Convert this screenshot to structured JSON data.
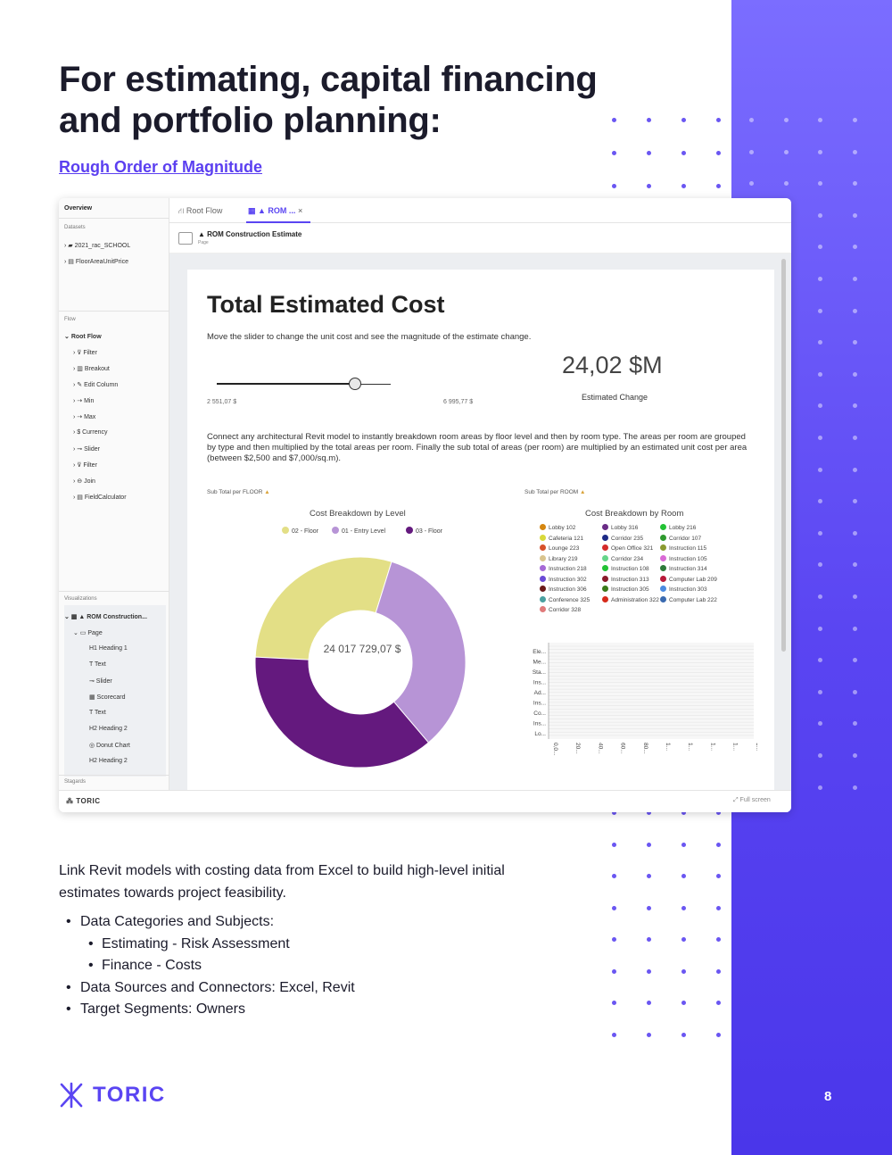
{
  "page": {
    "headline_line1": "For estimating, capital financing",
    "headline_line2": "and portfolio planning:",
    "subheading": "Rough Order of Magnitude",
    "body": "Link Revit models with costing data from Excel to build high-level initial estimates towards project feasibility.",
    "bullets": [
      "Data Categories and Subjects:",
      "Estimating - Risk Assessment",
      "Finance - Costs",
      "Data Sources and Connectors: Excel, Revit",
      "Target Segments: Owners"
    ],
    "brand": "TORIC",
    "page_number": "8",
    "colors": {
      "accent": "#5a45f2",
      "band_top": "#7b6dff",
      "band_bottom": "#4a36ea"
    }
  },
  "app": {
    "sidebar": {
      "overview": "Overview",
      "datasets_label": "Datasets",
      "datasets": [
        "2021_rac_SCHOOL",
        "FloorAreaUnitPrice"
      ],
      "flow_label": "Flow",
      "root_flow": "Root Flow",
      "flow_items": [
        "Filter",
        "Breakout",
        "Edit Column",
        "Min",
        "Max",
        "Currency",
        "Slider",
        "Filter",
        "Join",
        "FieldCalculator"
      ],
      "visualizations_label": "Visualizations",
      "vis_root": "ROM Construction...",
      "vis_page": "Page",
      "vis_items": [
        "Heading 1",
        "Text",
        "Slider",
        "Scorecard",
        "Text",
        "Heading 2",
        "Donut Chart",
        "Heading 2"
      ],
      "stagards": "Stagards"
    },
    "tabs": {
      "root_flow": "Root Flow",
      "rom": "ROM ...",
      "close": "×"
    },
    "pagebar": {
      "title": "ROM Construction Estimate",
      "subtitle": "Page"
    },
    "report": {
      "title": "Total Estimated Cost",
      "description": "Move the slider to change the unit cost and see the magnitude of the estimate change.",
      "slider_min": "2 551,07 $",
      "slider_max": "6 995,77 $",
      "big_number": "24,02 $M",
      "big_number_label": "Estimated Change",
      "body": "Connect any architectural Revit model to instantly breakdown room areas by floor level and then by room type. The areas per room are grouped by type and then multiplied by the total areas per room. Finally the sub total of areas (per room) are multiplied by an estimated unit cost per area (between $2,500 and $7,000/sq.m).",
      "subtotal_floor": "Sub Total per FLOOR",
      "subtotal_room": "Sub Total per ROOM"
    },
    "footer": {
      "logo": "TORIC",
      "fullscreen": "Full screen"
    }
  },
  "chart_data": [
    {
      "type": "pie",
      "title": "Cost Breakdown by Level",
      "center_label": "24 017 729,07 $",
      "legend_position": "top",
      "series": [
        {
          "name": "02 - Floor",
          "value": 29,
          "color": "#e3df86"
        },
        {
          "name": "01 - Entry Level",
          "value": 34,
          "color": "#b794d6"
        },
        {
          "name": "03 - Floor",
          "value": 37,
          "color": "#64197e"
        }
      ]
    },
    {
      "type": "bar",
      "title": "Cost Breakdown by Room",
      "legend_position": "top",
      "legend": [
        {
          "name": "Lobby 102",
          "color": "#d5860f"
        },
        {
          "name": "Lobby 316",
          "color": "#6a2c86"
        },
        {
          "name": "Lobby 216",
          "color": "#22c234"
        },
        {
          "name": "Cafeteria 121",
          "color": "#d8d93a"
        },
        {
          "name": "Corridor 235",
          "color": "#1d2a86"
        },
        {
          "name": "Corridor 107",
          "color": "#2e9a2e"
        },
        {
          "name": "Lounge 223",
          "color": "#d7512a"
        },
        {
          "name": "Open Office 321",
          "color": "#d42a2a"
        },
        {
          "name": "Instruction 115",
          "color": "#8b9a30"
        },
        {
          "name": "Library 219",
          "color": "#d9c48e"
        },
        {
          "name": "Corridor 234",
          "color": "#66d58a"
        },
        {
          "name": "Instruction 105",
          "color": "#d96ad5"
        },
        {
          "name": "Instruction 218",
          "color": "#a66ad6"
        },
        {
          "name": "Instruction 108",
          "color": "#22c234"
        },
        {
          "name": "Instruction 314",
          "color": "#2e7a3a"
        },
        {
          "name": "Instruction 302",
          "color": "#6a4ad6"
        },
        {
          "name": "Instruction 313",
          "color": "#8a1a2a"
        },
        {
          "name": "Computer Lab 209",
          "color": "#b81a3a"
        },
        {
          "name": "Instruction 306",
          "color": "#6a1a1a"
        },
        {
          "name": "Instruction 305",
          "color": "#3a7a1a"
        },
        {
          "name": "Instruction 303",
          "color": "#4a8ae0"
        },
        {
          "name": "Conference 325",
          "color": "#4aa0a0"
        },
        {
          "name": "Administration 322",
          "color": "#d62a1a"
        },
        {
          "name": "Computer Lab 222",
          "color": "#3a6ab0"
        },
        {
          "name": "Corridor 328",
          "color": "#e07a7a"
        }
      ],
      "categories": [
        "Ele...",
        "Me...",
        "Sta...",
        "Ins...",
        "Ad...",
        "Ins...",
        "Co...",
        "Ins...",
        "Lo..."
      ],
      "x_ticks": [
        "0,0...",
        "20...",
        "40...",
        "60...",
        "80...",
        "1...",
        "1...",
        "1...",
        "1...",
        "1..."
      ]
    }
  ]
}
